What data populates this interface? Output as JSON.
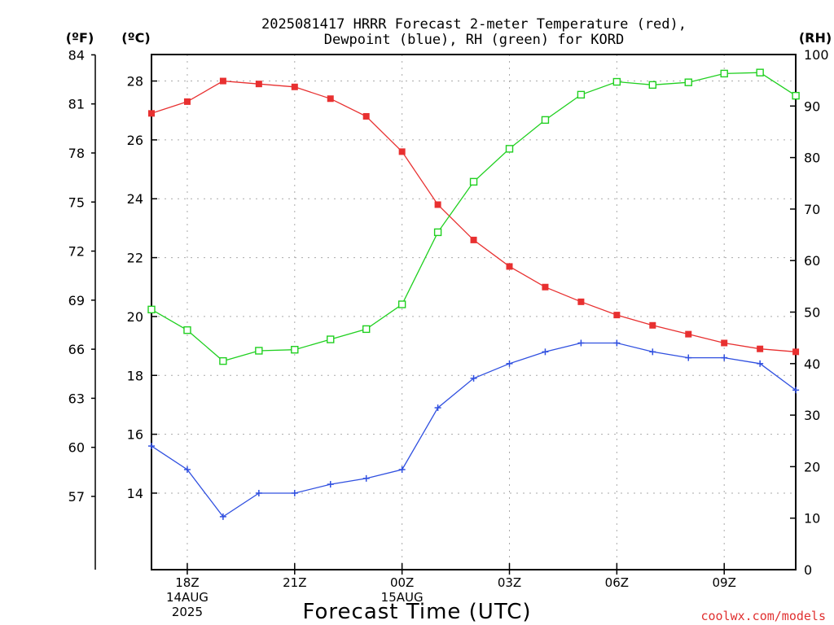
{
  "chart_data": {
    "type": "line",
    "title": [
      "2025081417 HRRR Forecast 2-meter Temperature (red),",
      "Dewpoint (blue), RH (green) for KORD"
    ],
    "xlabel": "Forecast Time (UTC)",
    "credit": "coolwx.com/models",
    "units": {
      "f": "(ºF)",
      "c": "(ºC)",
      "rh": "(RH)"
    },
    "x_hours": [
      17,
      18,
      19,
      20,
      21,
      22,
      23,
      24,
      25,
      26,
      27,
      28,
      29,
      30,
      31,
      32,
      33,
      34,
      35
    ],
    "x_ticks": [
      {
        "hour": 18,
        "lines": [
          "18Z",
          "14AUG",
          "2025"
        ]
      },
      {
        "hour": 21,
        "lines": [
          "21Z"
        ]
      },
      {
        "hour": 24,
        "lines": [
          "00Z",
          "15AUG"
        ]
      },
      {
        "hour": 27,
        "lines": [
          "03Z"
        ]
      },
      {
        "hour": 30,
        "lines": [
          "06Z"
        ]
      },
      {
        "hour": 33,
        "lines": [
          "09Z"
        ]
      }
    ],
    "celsius_axis": {
      "range": [
        11.4,
        28.9
      ],
      "ticks": [
        14,
        16,
        18,
        20,
        22,
        24,
        26,
        28
      ]
    },
    "fahrenheit_axis": {
      "ticks": [
        57,
        60,
        63,
        66,
        69,
        72,
        75,
        78,
        81,
        84
      ]
    },
    "rh_axis": {
      "range": [
        0,
        100
      ],
      "ticks": [
        0,
        10,
        20,
        30,
        40,
        50,
        60,
        70,
        80,
        90,
        100
      ]
    },
    "grid": true,
    "series": [
      {
        "name": "Temperature",
        "axis": "c",
        "color": "#e83030",
        "marker": "filled-square",
        "values": [
          26.9,
          27.3,
          28.0,
          27.9,
          27.8,
          27.4,
          26.8,
          25.6,
          23.8,
          22.6,
          21.7,
          21.0,
          20.5,
          20.05,
          19.7,
          19.4,
          19.1,
          18.9,
          18.8
        ]
      },
      {
        "name": "Dewpoint",
        "axis": "c",
        "color": "#3050e0",
        "marker": "plus",
        "values": [
          15.6,
          14.8,
          13.2,
          14.0,
          14.0,
          14.3,
          14.5,
          14.8,
          16.9,
          17.9,
          18.4,
          18.8,
          19.1,
          19.1,
          18.8,
          18.6,
          18.6,
          18.4,
          17.5
        ]
      },
      {
        "name": "RH",
        "axis": "rh",
        "color": "#20d020",
        "marker": "open-square",
        "values": [
          50.5,
          46.5,
          40.5,
          42.5,
          42.7,
          44.7,
          46.7,
          51.5,
          65.5,
          75.3,
          81.7,
          87.3,
          92.2,
          94.7,
          94.1,
          94.6,
          96.3,
          96.5,
          92.0
        ]
      }
    ]
  }
}
